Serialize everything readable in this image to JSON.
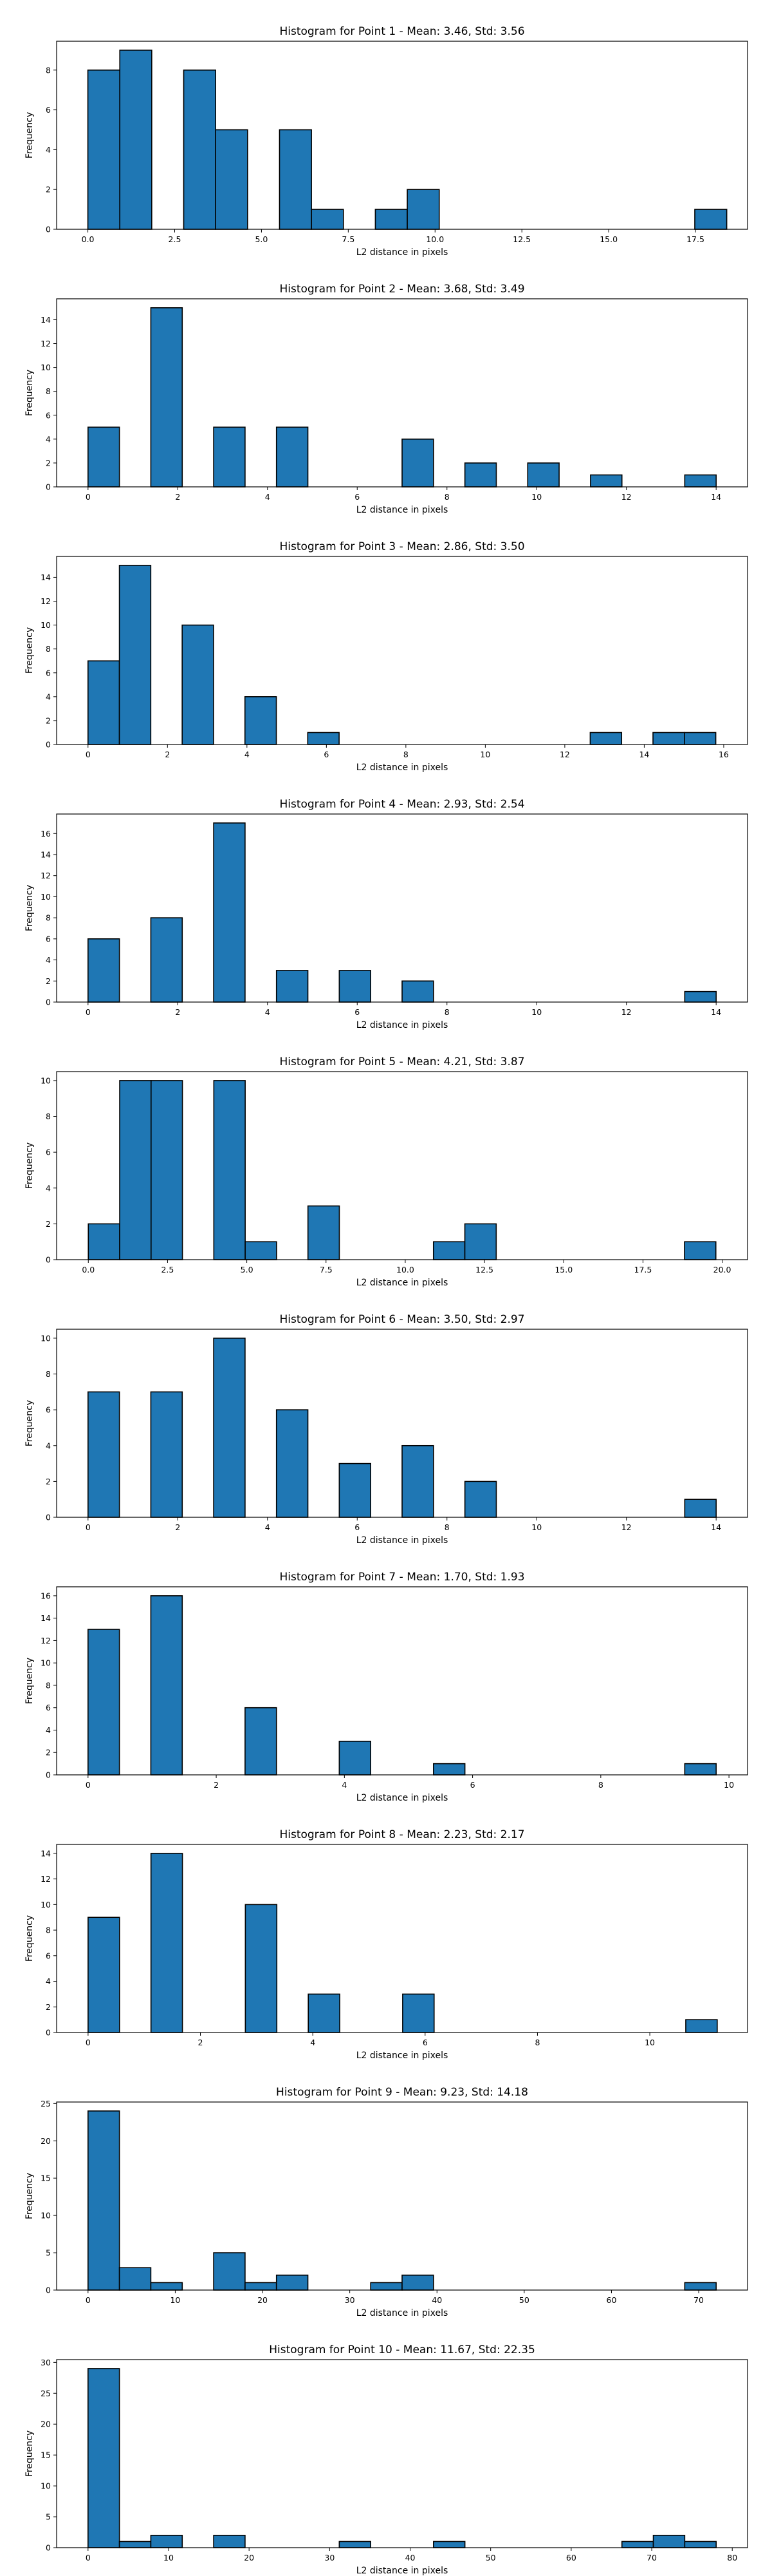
{
  "chart_data": [
    {
      "type": "bar",
      "title": "Histogram for Point 1 - Mean: 3.46, Std: 3.56",
      "xlabel": "L2 distance in pixels",
      "ylabel": "Frequency",
      "xlim": [
        -0.9,
        19.0
      ],
      "ylim": [
        0,
        9.45
      ],
      "xticks": [
        0.0,
        2.5,
        5.0,
        7.5,
        10.0,
        12.5,
        15.0,
        17.5
      ],
      "xticklabels": [
        "0.0",
        "2.5",
        "5.0",
        "7.5",
        "10.0",
        "12.5",
        "15.0",
        "17.5"
      ],
      "yticks": [
        0,
        2,
        4,
        6,
        8
      ],
      "bins": [
        {
          "x0": 0.0,
          "x1": 0.92,
          "count": 8
        },
        {
          "x0": 0.92,
          "x1": 1.84,
          "count": 9
        },
        {
          "x0": 2.76,
          "x1": 3.68,
          "count": 8
        },
        {
          "x0": 3.68,
          "x1": 4.6,
          "count": 5
        },
        {
          "x0": 5.52,
          "x1": 6.44,
          "count": 5
        },
        {
          "x0": 6.44,
          "x1": 7.36,
          "count": 1
        },
        {
          "x0": 8.28,
          "x1": 9.2,
          "count": 1
        },
        {
          "x0": 9.2,
          "x1": 10.12,
          "count": 2
        },
        {
          "x0": 17.48,
          "x1": 18.4,
          "count": 1
        }
      ]
    },
    {
      "type": "bar",
      "title": "Histogram for Point 2 - Mean: 3.68, Std: 3.49",
      "xlabel": "L2 distance in pixels",
      "ylabel": "Frequency",
      "xlim": [
        -0.7,
        14.7
      ],
      "ylim": [
        0,
        15.75
      ],
      "xticks": [
        0,
        2,
        4,
        6,
        8,
        10,
        12,
        14
      ],
      "xticklabels": [
        "0",
        "2",
        "4",
        "6",
        "8",
        "10",
        "12",
        "14"
      ],
      "yticks": [
        0,
        2,
        4,
        6,
        8,
        10,
        12,
        14
      ],
      "bins": [
        {
          "x0": 0.0,
          "x1": 0.7,
          "count": 5
        },
        {
          "x0": 1.4,
          "x1": 2.1,
          "count": 15
        },
        {
          "x0": 2.8,
          "x1": 3.5,
          "count": 5
        },
        {
          "x0": 4.2,
          "x1": 4.9,
          "count": 5
        },
        {
          "x0": 7.0,
          "x1": 7.7,
          "count": 4
        },
        {
          "x0": 8.4,
          "x1": 9.1,
          "count": 2
        },
        {
          "x0": 9.8,
          "x1": 10.5,
          "count": 2
        },
        {
          "x0": 11.2,
          "x1": 11.9,
          "count": 1
        },
        {
          "x0": 13.3,
          "x1": 14.0,
          "count": 1
        }
      ]
    },
    {
      "type": "bar",
      "title": "Histogram for Point 3 - Mean: 2.86, Std: 3.50",
      "xlabel": "L2 distance in pixels",
      "ylabel": "Frequency",
      "xlim": [
        -0.79,
        16.6
      ],
      "ylim": [
        0,
        15.75
      ],
      "xticks": [
        0,
        2,
        4,
        6,
        8,
        10,
        12,
        14,
        16
      ],
      "xticklabels": [
        "0",
        "2",
        "4",
        "6",
        "8",
        "10",
        "12",
        "14",
        "16"
      ],
      "yticks": [
        0,
        2,
        4,
        6,
        8,
        10,
        12,
        14
      ],
      "bins": [
        {
          "x0": 0.0,
          "x1": 0.79,
          "count": 7
        },
        {
          "x0": 0.79,
          "x1": 1.58,
          "count": 15
        },
        {
          "x0": 2.37,
          "x1": 3.16,
          "count": 10
        },
        {
          "x0": 3.95,
          "x1": 4.74,
          "count": 4
        },
        {
          "x0": 5.53,
          "x1": 6.32,
          "count": 1
        },
        {
          "x0": 12.64,
          "x1": 13.43,
          "count": 1
        },
        {
          "x0": 14.22,
          "x1": 15.01,
          "count": 1
        },
        {
          "x0": 15.01,
          "x1": 15.8,
          "count": 1
        }
      ]
    },
    {
      "type": "bar",
      "title": "Histogram for Point 4 - Mean: 2.93, Std: 2.54",
      "xlabel": "L2 distance in pixels",
      "ylabel": "Frequency",
      "xlim": [
        -0.7,
        14.7
      ],
      "ylim": [
        0,
        17.85
      ],
      "xticks": [
        0,
        2,
        4,
        6,
        8,
        10,
        12,
        14
      ],
      "xticklabels": [
        "0",
        "2",
        "4",
        "6",
        "8",
        "10",
        "12",
        "14"
      ],
      "yticks": [
        0,
        2,
        4,
        6,
        8,
        10,
        12,
        14,
        16
      ],
      "bins": [
        {
          "x0": 0.0,
          "x1": 0.7,
          "count": 6
        },
        {
          "x0": 1.4,
          "x1": 2.1,
          "count": 8
        },
        {
          "x0": 2.8,
          "x1": 3.5,
          "count": 17
        },
        {
          "x0": 4.2,
          "x1": 4.9,
          "count": 3
        },
        {
          "x0": 5.6,
          "x1": 6.3,
          "count": 3
        },
        {
          "x0": 7.0,
          "x1": 7.7,
          "count": 2
        },
        {
          "x0": 13.3,
          "x1": 14.0,
          "count": 1
        }
      ]
    },
    {
      "type": "bar",
      "title": "Histogram for Point 5 - Mean: 4.21, Std: 3.87",
      "xlabel": "L2 distance in pixels",
      "ylabel": "Frequency",
      "xlim": [
        -1.0,
        20.8
      ],
      "ylim": [
        0,
        10.5
      ],
      "xticks": [
        0.0,
        2.5,
        5.0,
        7.5,
        10.0,
        12.5,
        15.0,
        17.5,
        20.0
      ],
      "xticklabels": [
        "0.0",
        "2.5",
        "5.0",
        "7.5",
        "10.0",
        "12.5",
        "15.0",
        "17.5",
        "20.0"
      ],
      "yticks": [
        0,
        2,
        4,
        6,
        8,
        10
      ],
      "bins": [
        {
          "x0": 0.0,
          "x1": 0.99,
          "count": 2
        },
        {
          "x0": 0.99,
          "x1": 1.98,
          "count": 10
        },
        {
          "x0": 1.98,
          "x1": 2.97,
          "count": 10
        },
        {
          "x0": 3.96,
          "x1": 4.95,
          "count": 10
        },
        {
          "x0": 4.95,
          "x1": 5.94,
          "count": 1
        },
        {
          "x0": 6.93,
          "x1": 7.92,
          "count": 3
        },
        {
          "x0": 10.89,
          "x1": 11.88,
          "count": 1
        },
        {
          "x0": 11.88,
          "x1": 12.87,
          "count": 2
        },
        {
          "x0": 18.81,
          "x1": 19.8,
          "count": 1
        }
      ]
    },
    {
      "type": "bar",
      "title": "Histogram for Point 6 - Mean: 3.50, Std: 2.97",
      "xlabel": "L2 distance in pixels",
      "ylabel": "Frequency",
      "xlim": [
        -0.7,
        14.7
      ],
      "ylim": [
        0,
        10.5
      ],
      "xticks": [
        0,
        2,
        4,
        6,
        8,
        10,
        12,
        14
      ],
      "xticklabels": [
        "0",
        "2",
        "4",
        "6",
        "8",
        "10",
        "12",
        "14"
      ],
      "yticks": [
        0,
        2,
        4,
        6,
        8,
        10
      ],
      "bins": [
        {
          "x0": 0.0,
          "x1": 0.7,
          "count": 7
        },
        {
          "x0": 1.4,
          "x1": 2.1,
          "count": 7
        },
        {
          "x0": 2.8,
          "x1": 3.5,
          "count": 10
        },
        {
          "x0": 4.2,
          "x1": 4.9,
          "count": 6
        },
        {
          "x0": 5.6,
          "x1": 6.3,
          "count": 3
        },
        {
          "x0": 7.0,
          "x1": 7.7,
          "count": 4
        },
        {
          "x0": 8.4,
          "x1": 9.1,
          "count": 2
        },
        {
          "x0": 13.3,
          "x1": 14.0,
          "count": 1
        }
      ]
    },
    {
      "type": "bar",
      "title": "Histogram for Point 7 - Mean: 1.70, Std: 1.93",
      "xlabel": "L2 distance in pixels",
      "ylabel": "Frequency",
      "xlim": [
        -0.49,
        10.29
      ],
      "ylim": [
        0,
        16.8
      ],
      "xticks": [
        0,
        2,
        4,
        6,
        8,
        10
      ],
      "xticklabels": [
        "0",
        "2",
        "4",
        "6",
        "8",
        "10"
      ],
      "yticks": [
        0,
        2,
        4,
        6,
        8,
        10,
        12,
        14,
        16
      ],
      "bins": [
        {
          "x0": 0.0,
          "x1": 0.49,
          "count": 13
        },
        {
          "x0": 0.98,
          "x1": 1.47,
          "count": 16
        },
        {
          "x0": 2.45,
          "x1": 2.94,
          "count": 6
        },
        {
          "x0": 3.92,
          "x1": 4.41,
          "count": 3
        },
        {
          "x0": 5.39,
          "x1": 5.88,
          "count": 1
        },
        {
          "x0": 9.31,
          "x1": 9.8,
          "count": 1
        }
      ]
    },
    {
      "type": "bar",
      "title": "Histogram for Point 8 - Mean: 2.23, Std: 2.17",
      "xlabel": "L2 distance in pixels",
      "ylabel": "Frequency",
      "xlim": [
        -0.56,
        11.74
      ],
      "ylim": [
        0,
        14.7
      ],
      "xticks": [
        0,
        2,
        4,
        6,
        8,
        10
      ],
      "xticklabels": [
        "0",
        "2",
        "4",
        "6",
        "8",
        "10"
      ],
      "yticks": [
        0,
        2,
        4,
        6,
        8,
        10,
        12,
        14
      ],
      "bins": [
        {
          "x0": 0.0,
          "x1": 0.56,
          "count": 9
        },
        {
          "x0": 1.12,
          "x1": 1.68,
          "count": 14
        },
        {
          "x0": 2.8,
          "x1": 3.36,
          "count": 10
        },
        {
          "x0": 3.92,
          "x1": 4.48,
          "count": 3
        },
        {
          "x0": 5.6,
          "x1": 6.16,
          "count": 3
        },
        {
          "x0": 10.64,
          "x1": 11.2,
          "count": 1
        }
      ]
    },
    {
      "type": "bar",
      "title": "Histogram for Point 9 - Mean: 9.23, Std: 14.18",
      "xlabel": "L2 distance in pixels",
      "ylabel": "Frequency",
      "xlim": [
        -3.6,
        75.6
      ],
      "ylim": [
        0,
        25.2
      ],
      "xticks": [
        0,
        10,
        20,
        30,
        40,
        50,
        60,
        70
      ],
      "xticklabels": [
        "0",
        "10",
        "20",
        "30",
        "40",
        "50",
        "60",
        "70"
      ],
      "yticks": [
        0,
        5,
        10,
        15,
        20,
        25
      ],
      "bins": [
        {
          "x0": 0.0,
          "x1": 3.6,
          "count": 24
        },
        {
          "x0": 3.6,
          "x1": 7.2,
          "count": 3
        },
        {
          "x0": 7.2,
          "x1": 10.8,
          "count": 1
        },
        {
          "x0": 14.4,
          "x1": 18.0,
          "count": 5
        },
        {
          "x0": 18.0,
          "x1": 21.6,
          "count": 1
        },
        {
          "x0": 21.6,
          "x1": 25.2,
          "count": 2
        },
        {
          "x0": 32.4,
          "x1": 36.0,
          "count": 1
        },
        {
          "x0": 36.0,
          "x1": 39.6,
          "count": 2
        },
        {
          "x0": 68.4,
          "x1": 72.0,
          "count": 1
        }
      ]
    },
    {
      "type": "bar",
      "title": "Histogram for Point 10 - Mean: 11.67, Std: 22.35",
      "xlabel": "L2 distance in pixels",
      "ylabel": "Frequency",
      "xlim": [
        -3.9,
        81.9
      ],
      "ylim": [
        0,
        30.45
      ],
      "xticks": [
        0,
        10,
        20,
        30,
        40,
        50,
        60,
        70,
        80
      ],
      "xticklabels": [
        "0",
        "10",
        "20",
        "30",
        "40",
        "50",
        "60",
        "70",
        "80"
      ],
      "yticks": [
        0,
        5,
        10,
        15,
        20,
        25,
        30
      ],
      "bins": [
        {
          "x0": 0.0,
          "x1": 3.9,
          "count": 29
        },
        {
          "x0": 3.9,
          "x1": 7.8,
          "count": 1
        },
        {
          "x0": 7.8,
          "x1": 11.7,
          "count": 2
        },
        {
          "x0": 15.6,
          "x1": 19.5,
          "count": 2
        },
        {
          "x0": 31.2,
          "x1": 35.1,
          "count": 1
        },
        {
          "x0": 42.9,
          "x1": 46.8,
          "count": 1
        },
        {
          "x0": 66.3,
          "x1": 70.2,
          "count": 1
        },
        {
          "x0": 70.2,
          "x1": 74.1,
          "count": 2
        },
        {
          "x0": 74.1,
          "x1": 78.0,
          "count": 1
        }
      ]
    }
  ]
}
